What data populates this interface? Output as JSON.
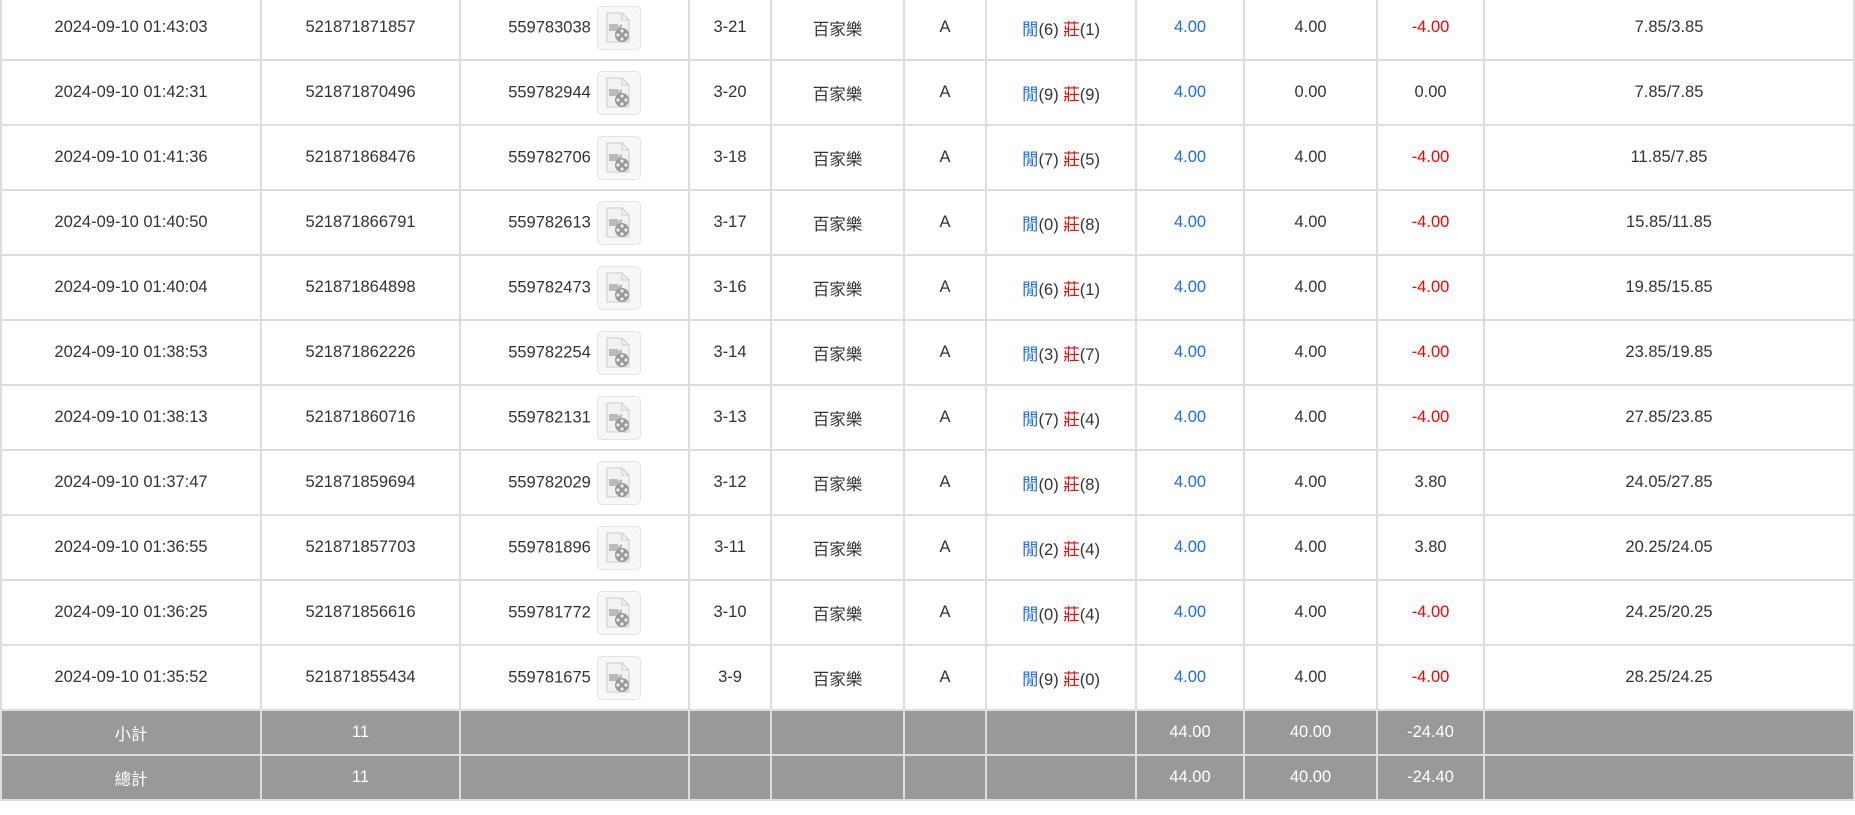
{
  "colors": {
    "player": "#1a6cf0",
    "banker": "#ff0000",
    "negative": "#ff0000",
    "summary_bg": "#999999"
  },
  "rows": [
    {
      "time": "2024-09-10 01:43:03",
      "bet_id": "521871871857",
      "round_id": "559783038",
      "shoe": "3-21",
      "game": "百家樂",
      "table": "A",
      "p_label": "閒",
      "p": "(6)",
      "b_label": "莊",
      "b": "(1)",
      "bet": "4.00",
      "valid": "4.00",
      "win": "-4.00",
      "balance": "7.85/3.85"
    },
    {
      "time": "2024-09-10 01:42:31",
      "bet_id": "521871870496",
      "round_id": "559782944",
      "shoe": "3-20",
      "game": "百家樂",
      "table": "A",
      "p_label": "閒",
      "p": "(9)",
      "b_label": "莊",
      "b": "(9)",
      "bet": "4.00",
      "valid": "0.00",
      "win": "0.00",
      "balance": "7.85/7.85"
    },
    {
      "time": "2024-09-10 01:41:36",
      "bet_id": "521871868476",
      "round_id": "559782706",
      "shoe": "3-18",
      "game": "百家樂",
      "table": "A",
      "p_label": "閒",
      "p": "(7)",
      "b_label": "莊",
      "b": "(5)",
      "bet": "4.00",
      "valid": "4.00",
      "win": "-4.00",
      "balance": "11.85/7.85"
    },
    {
      "time": "2024-09-10 01:40:50",
      "bet_id": "521871866791",
      "round_id": "559782613",
      "shoe": "3-17",
      "game": "百家樂",
      "table": "A",
      "p_label": "閒",
      "p": "(0)",
      "b_label": "莊",
      "b": "(8)",
      "bet": "4.00",
      "valid": "4.00",
      "win": "-4.00",
      "balance": "15.85/11.85"
    },
    {
      "time": "2024-09-10 01:40:04",
      "bet_id": "521871864898",
      "round_id": "559782473",
      "shoe": "3-16",
      "game": "百家樂",
      "table": "A",
      "p_label": "閒",
      "p": "(6)",
      "b_label": "莊",
      "b": "(1)",
      "bet": "4.00",
      "valid": "4.00",
      "win": "-4.00",
      "balance": "19.85/15.85"
    },
    {
      "time": "2024-09-10 01:38:53",
      "bet_id": "521871862226",
      "round_id": "559782254",
      "shoe": "3-14",
      "game": "百家樂",
      "table": "A",
      "p_label": "閒",
      "p": "(3)",
      "b_label": "莊",
      "b": "(7)",
      "bet": "4.00",
      "valid": "4.00",
      "win": "-4.00",
      "balance": "23.85/19.85"
    },
    {
      "time": "2024-09-10 01:38:13",
      "bet_id": "521871860716",
      "round_id": "559782131",
      "shoe": "3-13",
      "game": "百家樂",
      "table": "A",
      "p_label": "閒",
      "p": "(7)",
      "b_label": "莊",
      "b": "(4)",
      "bet": "4.00",
      "valid": "4.00",
      "win": "-4.00",
      "balance": "27.85/23.85"
    },
    {
      "time": "2024-09-10 01:37:47",
      "bet_id": "521871859694",
      "round_id": "559782029",
      "shoe": "3-12",
      "game": "百家樂",
      "table": "A",
      "p_label": "閒",
      "p": "(0)",
      "b_label": "莊",
      "b": "(8)",
      "bet": "4.00",
      "valid": "4.00",
      "win": "3.80",
      "balance": "24.05/27.85"
    },
    {
      "time": "2024-09-10 01:36:55",
      "bet_id": "521871857703",
      "round_id": "559781896",
      "shoe": "3-11",
      "game": "百家樂",
      "table": "A",
      "p_label": "閒",
      "p": "(2)",
      "b_label": "莊",
      "b": "(4)",
      "bet": "4.00",
      "valid": "4.00",
      "win": "3.80",
      "balance": "20.25/24.05"
    },
    {
      "time": "2024-09-10 01:36:25",
      "bet_id": "521871856616",
      "round_id": "559781772",
      "shoe": "3-10",
      "game": "百家樂",
      "table": "A",
      "p_label": "閒",
      "p": "(0)",
      "b_label": "莊",
      "b": "(4)",
      "bet": "4.00",
      "valid": "4.00",
      "win": "-4.00",
      "balance": "24.25/20.25"
    },
    {
      "time": "2024-09-10 01:35:52",
      "bet_id": "521871855434",
      "round_id": "559781675",
      "shoe": "3-9",
      "game": "百家樂",
      "table": "A",
      "p_label": "閒",
      "p": "(9)",
      "b_label": "莊",
      "b": "(0)",
      "bet": "4.00",
      "valid": "4.00",
      "win": "-4.00",
      "balance": "28.25/24.25"
    }
  ],
  "subtotal": {
    "label": "小計",
    "count": "11",
    "bet": "44.00",
    "valid": "40.00",
    "win": "-24.40"
  },
  "total": {
    "label": "總計",
    "count": "11",
    "bet": "44.00",
    "valid": "40.00",
    "win": "-24.40"
  }
}
